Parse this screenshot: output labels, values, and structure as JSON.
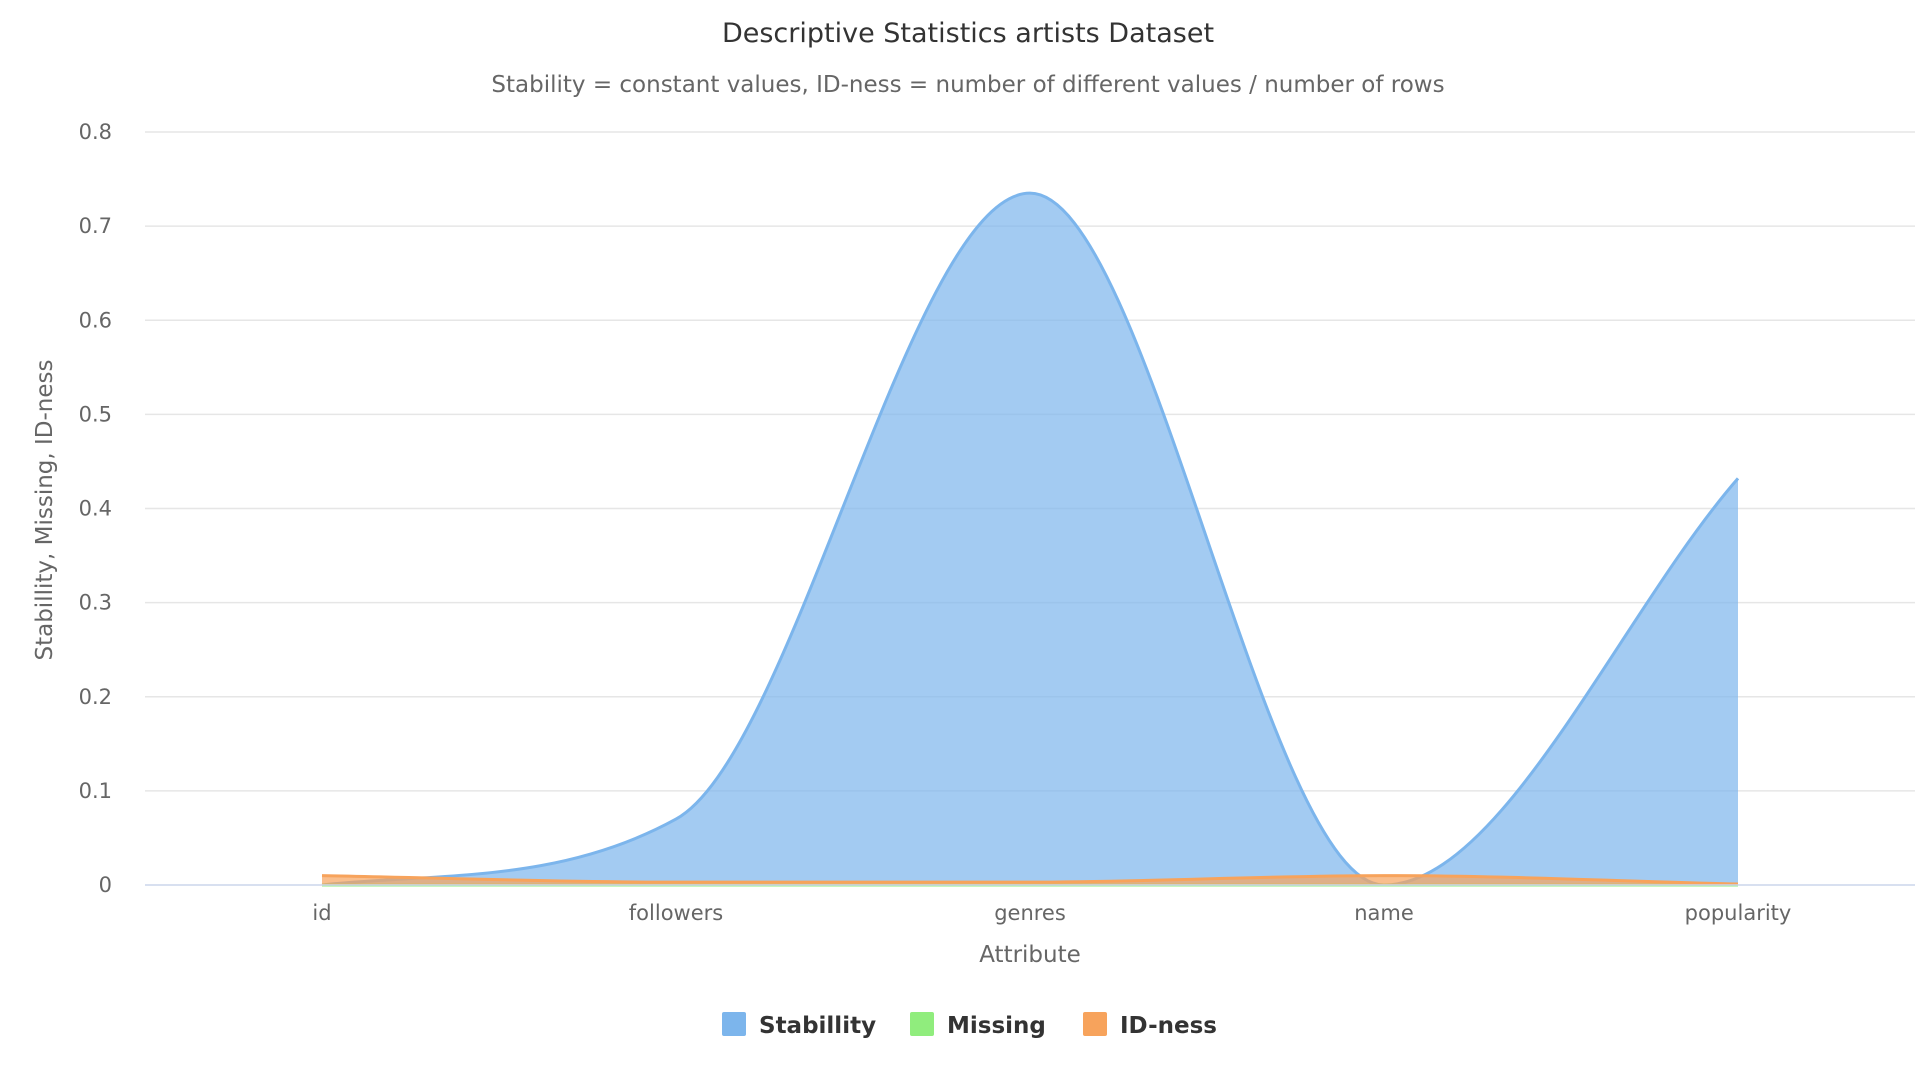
{
  "chart_data": {
    "type": "area",
    "title": "Descriptive Statistics artists Dataset",
    "subtitle": "Stability = constant values, ID-ness = number of different values / number of rows",
    "xlabel": "Attribute",
    "ylabel": "Stabillity, Missing, ID-ness",
    "categories": [
      "id",
      "followers",
      "genres",
      "name",
      "popularity"
    ],
    "ylim": [
      0,
      0.8
    ],
    "yticks": [
      "0",
      "0.1",
      "0.2",
      "0.3",
      "0.4",
      "0.5",
      "0.6",
      "0.7",
      "0.8"
    ],
    "grid": true,
    "legend_position": "bottom-center",
    "series": [
      {
        "name": "Stabillity",
        "color": "#7cb5ec",
        "values": [
          0.0,
          0.07,
          0.735,
          0.0,
          0.432
        ]
      },
      {
        "name": "Missing",
        "color": "#90ed7d",
        "values": [
          0.0,
          0.0,
          0.0,
          0.0,
          0.0
        ]
      },
      {
        "name": "ID-ness",
        "color": "#f7a35c",
        "values": [
          0.01,
          0.003,
          0.003,
          0.01,
          0.001
        ]
      }
    ]
  }
}
